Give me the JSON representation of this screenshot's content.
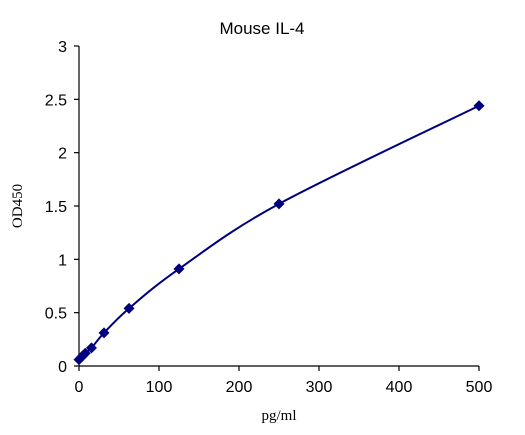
{
  "chart_data": {
    "type": "scatter",
    "title": "Mouse IL-4",
    "xlabel": "pg/ml",
    "ylabel": "OD450",
    "xlim": [
      0,
      500
    ],
    "ylim": [
      0,
      3
    ],
    "xticks": [
      "0",
      "100",
      "200",
      "300",
      "400",
      "500"
    ],
    "yticks": [
      "0",
      "0.5",
      "1",
      "1.5",
      "2",
      "2.5",
      "3"
    ],
    "grid": false,
    "series": [
      {
        "color": "#00007F",
        "marker": "diamond",
        "trendline": "smooth curve fit",
        "x": [
          0,
          3.9,
          7.8,
          15.6,
          31.25,
          62.5,
          125,
          250,
          500
        ],
        "y": [
          0.06,
          0.09,
          0.12,
          0.17,
          0.31,
          0.54,
          0.91,
          1.52,
          2.44
        ]
      }
    ]
  }
}
